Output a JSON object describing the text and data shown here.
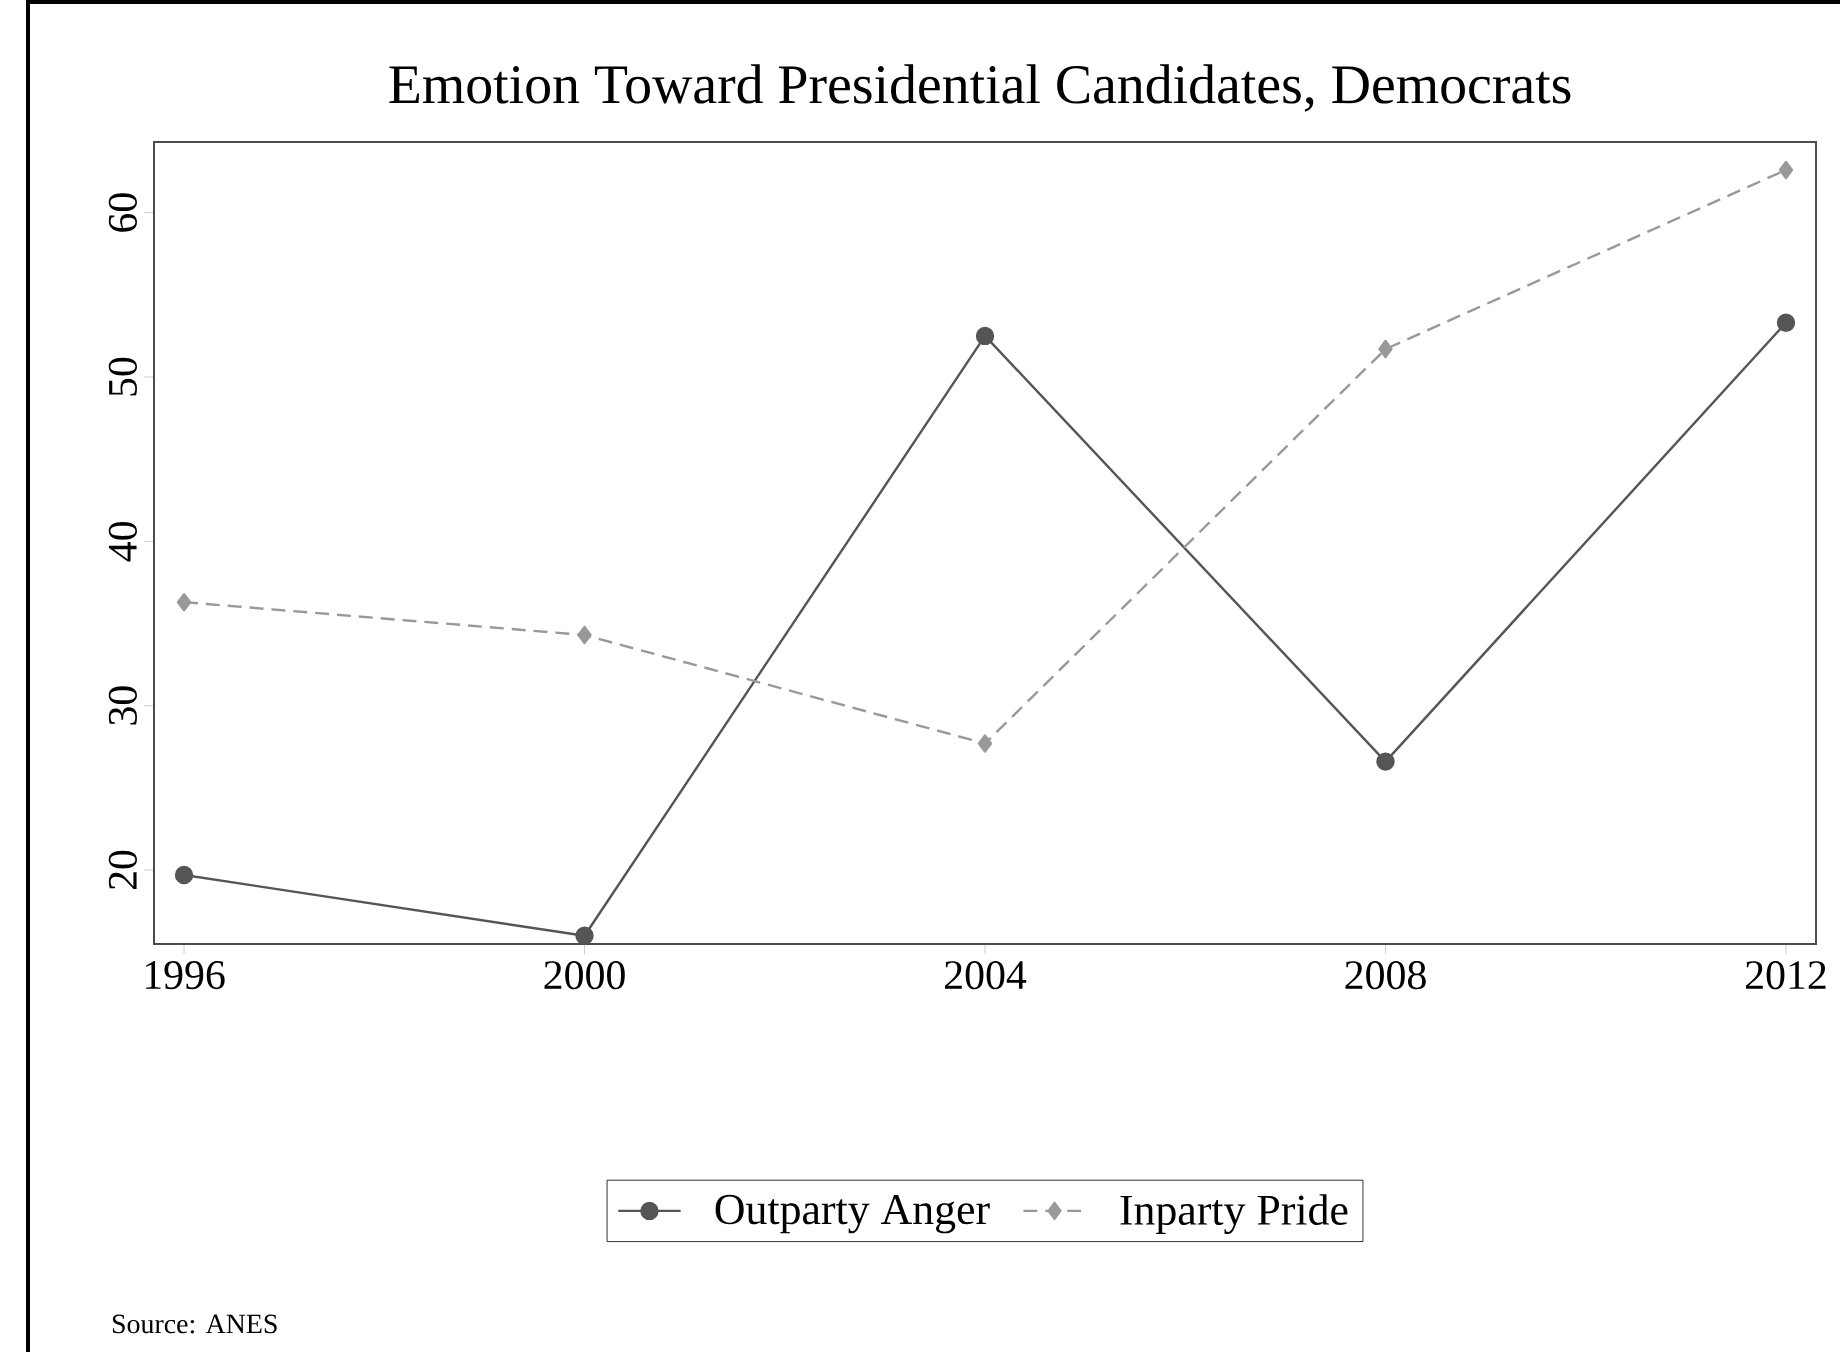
{
  "chart_data": {
    "type": "line",
    "title": "Emotion Toward Presidential Candidates, Democrats",
    "x": [
      1996,
      2000,
      2004,
      2008,
      2012
    ],
    "series": [
      {
        "name": "Outparty Anger",
        "color": "#555555",
        "marker": "circle",
        "line_style": "solid",
        "values": [
          19.7,
          16,
          52.5,
          26.6,
          53.3
        ]
      },
      {
        "name": "Inparty Pride",
        "color": "#999999",
        "marker": "diamond",
        "line_style": "dashed",
        "values": [
          36.3,
          34.3,
          27.7,
          51.7,
          62.6
        ]
      }
    ],
    "xlim": [
      1995.7,
      2012.3
    ],
    "xticks": [
      1996,
      2000,
      2004,
      2008,
      2012
    ],
    "ylim": [
      15.5,
      64.3
    ],
    "yticks": [
      20,
      30,
      40,
      50,
      60
    ],
    "grid": false,
    "legend": "bottom",
    "annotations": [
      "Source: ANES"
    ]
  }
}
